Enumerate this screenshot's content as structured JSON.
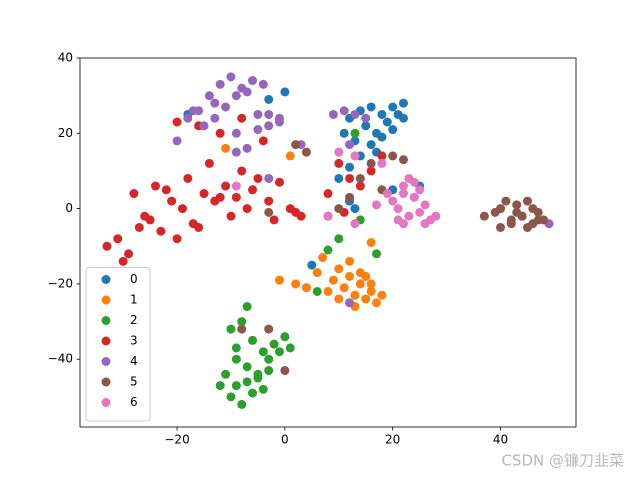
{
  "chart_data": {
    "type": "scatter",
    "xlim": [
      -38,
      54
    ],
    "ylim": [
      -58,
      40
    ],
    "xticks": [
      {
        "value": -20,
        "label": "−20"
      },
      0,
      20,
      40
    ],
    "yticks": [
      {
        "value": -40,
        "label": "−40"
      },
      {
        "value": -20,
        "label": "−20"
      },
      0,
      20,
      40
    ],
    "legend": "lower left",
    "series": [
      {
        "name": "0",
        "color": "#1f77b4",
        "x": [
          12,
          14,
          16,
          18,
          20,
          22,
          15,
          17,
          19,
          21,
          13,
          11,
          16,
          18,
          20,
          14,
          12,
          -18,
          0,
          -3,
          13,
          20,
          25,
          5,
          12,
          17,
          22,
          10
        ],
        "y": [
          24,
          26,
          27,
          25,
          27,
          28,
          22,
          20,
          23,
          25,
          18,
          20,
          17,
          19,
          21,
          14,
          11,
          25,
          31,
          29,
          0,
          5,
          6,
          -15,
          2,
          15,
          24,
          8
        ]
      },
      {
        "name": "1",
        "color": "#ff7f0e",
        "x": [
          10,
          12,
          14,
          16,
          11,
          13,
          15,
          17,
          9,
          12,
          14,
          16,
          8,
          10,
          13,
          15,
          -1,
          2,
          4,
          6,
          -11,
          1,
          16,
          7,
          12,
          18
        ],
        "y": [
          -16,
          -18,
          -20,
          -22,
          -21,
          -23,
          -24,
          -25,
          -19,
          -14,
          -17,
          -20,
          -22,
          -24,
          -26,
          -18,
          -19,
          -20,
          -21,
          -17,
          16,
          14,
          -9,
          -13,
          -25,
          -23
        ]
      },
      {
        "name": "2",
        "color": "#2ca02c",
        "x": [
          -10,
          -8,
          -6,
          -4,
          -2,
          0,
          -9,
          -7,
          -5,
          -3,
          -1,
          1,
          -11,
          -9,
          -7,
          -5,
          -3,
          -10,
          -8,
          -6,
          -4,
          -12,
          -9,
          -7,
          13,
          8,
          6,
          14,
          17,
          10
        ],
        "y": [
          -32,
          -30,
          -35,
          -38,
          -36,
          -34,
          -40,
          -42,
          -44,
          -40,
          -38,
          -37,
          -44,
          -47,
          -46,
          -45,
          -43,
          -50,
          -52,
          -49,
          -48,
          -47,
          -37,
          -26,
          20,
          -11,
          -22,
          -3,
          -12,
          -8
        ]
      },
      {
        "name": "3",
        "color": "#d62728",
        "x": [
          -33,
          -31,
          -29,
          -27,
          -25,
          -23,
          -21,
          -19,
          -17,
          -15,
          -13,
          -11,
          -9,
          -7,
          -5,
          -3,
          -1,
          1,
          3,
          -30,
          -26,
          -22,
          -18,
          -14,
          -10,
          -6,
          -2,
          2,
          -28,
          -24,
          -20,
          -16,
          -12,
          -8,
          -20,
          -16,
          -12,
          -8,
          -4,
          10,
          12,
          14,
          16,
          8,
          18,
          11
        ],
        "y": [
          -10,
          -8,
          -12,
          -5,
          -3,
          -6,
          2,
          0,
          -4,
          4,
          2,
          6,
          3,
          0,
          8,
          2,
          7,
          0,
          -2,
          -14,
          -2,
          5,
          8,
          12,
          -2,
          5,
          -3,
          -1,
          4,
          6,
          -8,
          -5,
          3,
          10,
          23,
          22,
          20,
          24,
          18,
          12,
          8,
          6,
          10,
          4,
          14,
          -1
        ]
      },
      {
        "name": "4",
        "color": "#9467bd",
        "x": [
          -18,
          -16,
          -14,
          -12,
          -10,
          -8,
          -6,
          -4,
          -15,
          -13,
          -11,
          -9,
          -7,
          -5,
          -3,
          -1,
          -17,
          -13,
          -9,
          -5,
          -3,
          -1,
          9,
          11,
          13,
          15,
          12,
          -9,
          -20,
          -3,
          49,
          12,
          -7,
          3
        ],
        "y": [
          24,
          26,
          30,
          33,
          35,
          32,
          34,
          33,
          22,
          28,
          27,
          30,
          31,
          25,
          22,
          24,
          26,
          24,
          20,
          21,
          25,
          23,
          25,
          26,
          25,
          24,
          17,
          15,
          18,
          8,
          -4,
          -25,
          16,
          17
        ]
      },
      {
        "name": "5",
        "color": "#8c564b",
        "x": [
          37,
          39,
          40,
          42,
          43,
          44,
          45,
          46,
          47,
          48,
          40,
          42,
          44,
          46,
          41,
          43,
          45,
          47,
          10,
          12,
          14,
          16,
          18,
          20,
          22,
          -8,
          0,
          -3,
          2,
          4,
          -3,
          8
        ],
        "y": [
          -2,
          -1,
          0,
          -3,
          1,
          -2,
          2,
          -4,
          -1,
          -3,
          -5,
          -4,
          -2,
          0,
          2,
          -1,
          -5,
          -3,
          0,
          3,
          8,
          12,
          5,
          14,
          13,
          -32,
          -43,
          -32,
          17,
          15,
          -1,
          -2
        ]
      },
      {
        "name": "6",
        "color": "#e377c2",
        "x": [
          20,
          21,
          22,
          23,
          24,
          25,
          26,
          27,
          28,
          22,
          24,
          26,
          21,
          23,
          25,
          22,
          10,
          13,
          18,
          -9,
          13,
          17,
          8,
          19,
          24
        ],
        "y": [
          2,
          0,
          4,
          -2,
          3,
          -1,
          1,
          -3,
          -2,
          6,
          7,
          -4,
          -3,
          8,
          5,
          -4,
          15,
          14,
          12,
          6,
          -4,
          1,
          -2,
          4,
          3
        ]
      }
    ],
    "watermark": "CSDN @镰刀韭菜"
  }
}
